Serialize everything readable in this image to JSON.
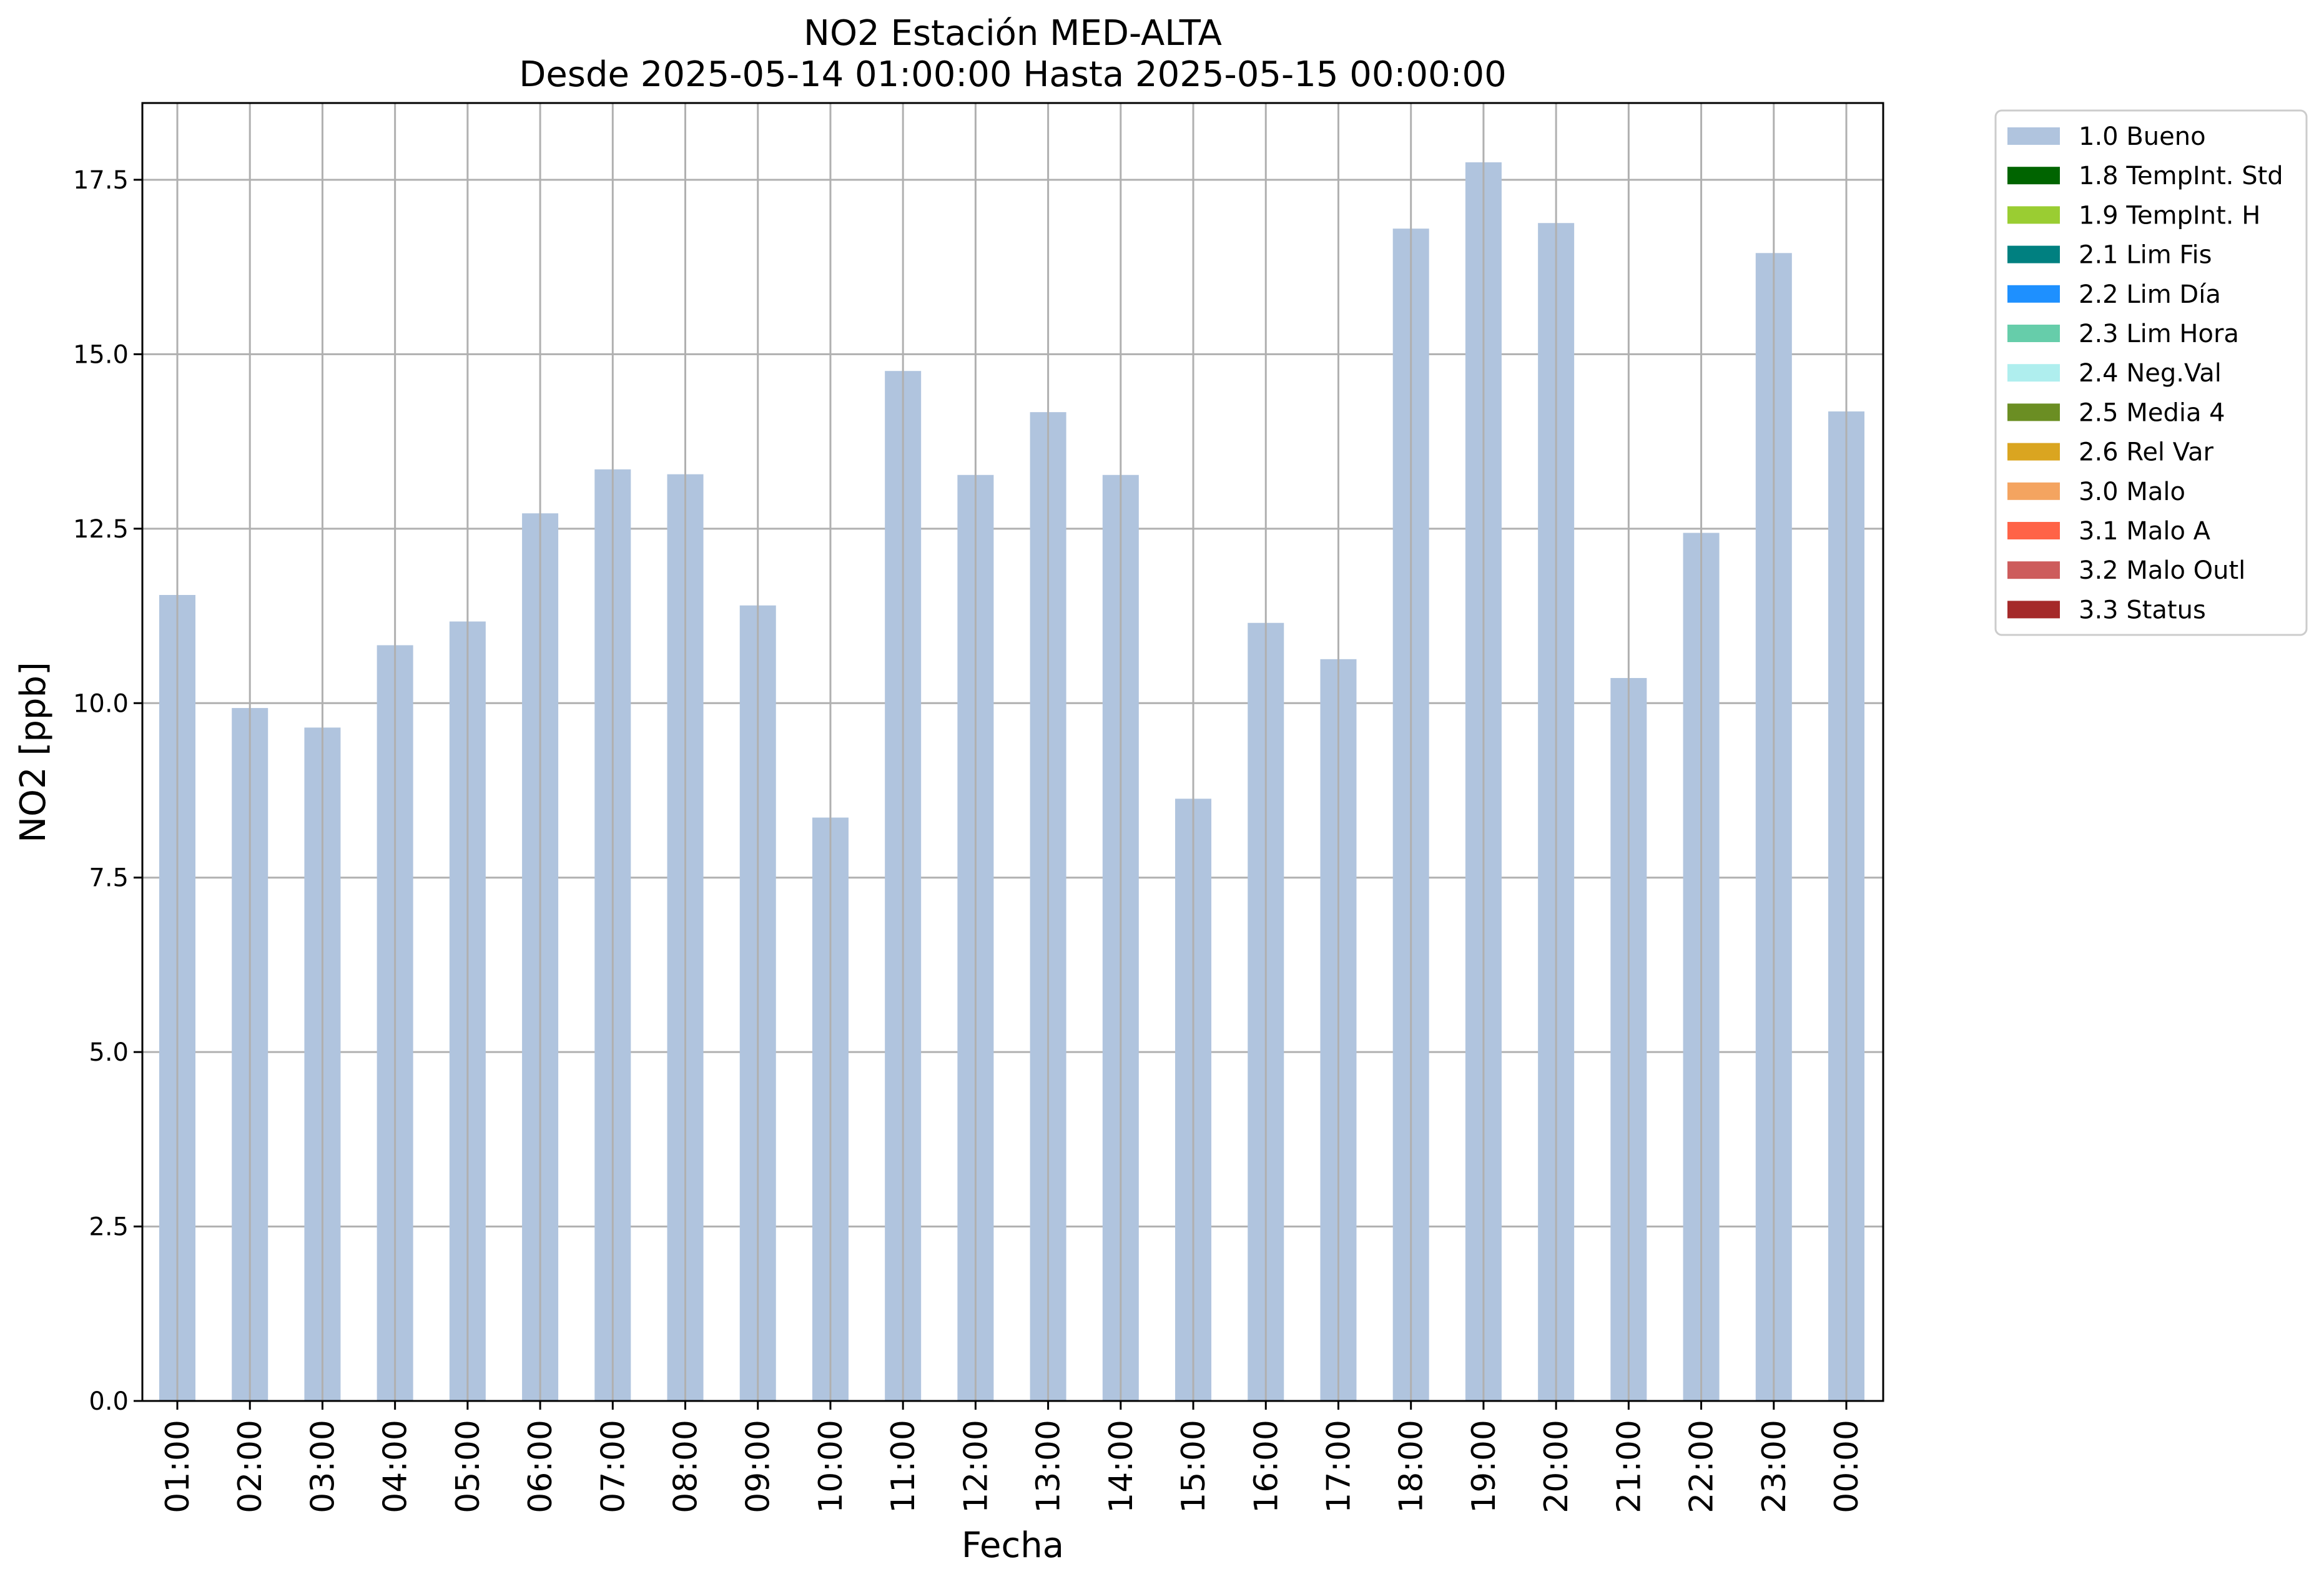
{
  "chart_data": {
    "type": "bar",
    "title": "NO2 Estación MED-ALTA",
    "subtitle": "Desde 2025-05-14 01:00:00 Hasta 2025-05-15 00:00:00",
    "xlabel": "Fecha",
    "ylabel": "NO2 [ppb]",
    "ylim": [
      0,
      18.6
    ],
    "yticks": [
      0.0,
      2.5,
      5.0,
      7.5,
      10.0,
      12.5,
      15.0,
      17.5
    ],
    "ytick_labels": [
      "0.0",
      "2.5",
      "5.0",
      "7.5",
      "10.0",
      "12.5",
      "15.0",
      "17.5"
    ],
    "grid": true,
    "legend_position": "outside-top-right",
    "categories": [
      "01:00",
      "02:00",
      "03:00",
      "04:00",
      "05:00",
      "06:00",
      "07:00",
      "08:00",
      "09:00",
      "10:00",
      "11:00",
      "12:00",
      "13:00",
      "14:00",
      "15:00",
      "16:00",
      "17:00",
      "18:00",
      "19:00",
      "20:00",
      "21:00",
      "22:00",
      "23:00",
      "00:00"
    ],
    "series": [
      {
        "name": "1.0 Bueno",
        "color": "#b0c4de",
        "values": [
          11.55,
          9.93,
          9.65,
          10.83,
          11.17,
          12.72,
          13.35,
          13.28,
          11.4,
          8.36,
          14.76,
          13.27,
          14.17,
          13.27,
          8.63,
          11.15,
          10.63,
          16.8,
          17.75,
          16.88,
          10.36,
          12.44,
          16.45,
          14.18
        ]
      }
    ],
    "legend": [
      {
        "label": "1.0 Bueno",
        "color": "#b0c4de"
      },
      {
        "label": "1.8 TempInt. Std",
        "color": "#006400"
      },
      {
        "label": "1.9 TempInt. H",
        "color": "#9acd32"
      },
      {
        "label": "2.1 Lim Fis",
        "color": "#008080"
      },
      {
        "label": "2.2 Lim Día",
        "color": "#1e90ff"
      },
      {
        "label": "2.3 Lim Hora",
        "color": "#66cdaa"
      },
      {
        "label": "2.4 Neg.Val",
        "color": "#afeeee"
      },
      {
        "label": "2.5 Media 4",
        "color": "#6b8e23"
      },
      {
        "label": "2.6 Rel Var",
        "color": "#daa520"
      },
      {
        "label": "3.0 Malo",
        "color": "#f4a460"
      },
      {
        "label": "3.1 Malo A",
        "color": "#ff6347"
      },
      {
        "label": "3.2 Malo Outl",
        "color": "#cd5c5c"
      },
      {
        "label": "3.3 Status",
        "color": "#a52a2a"
      }
    ]
  }
}
